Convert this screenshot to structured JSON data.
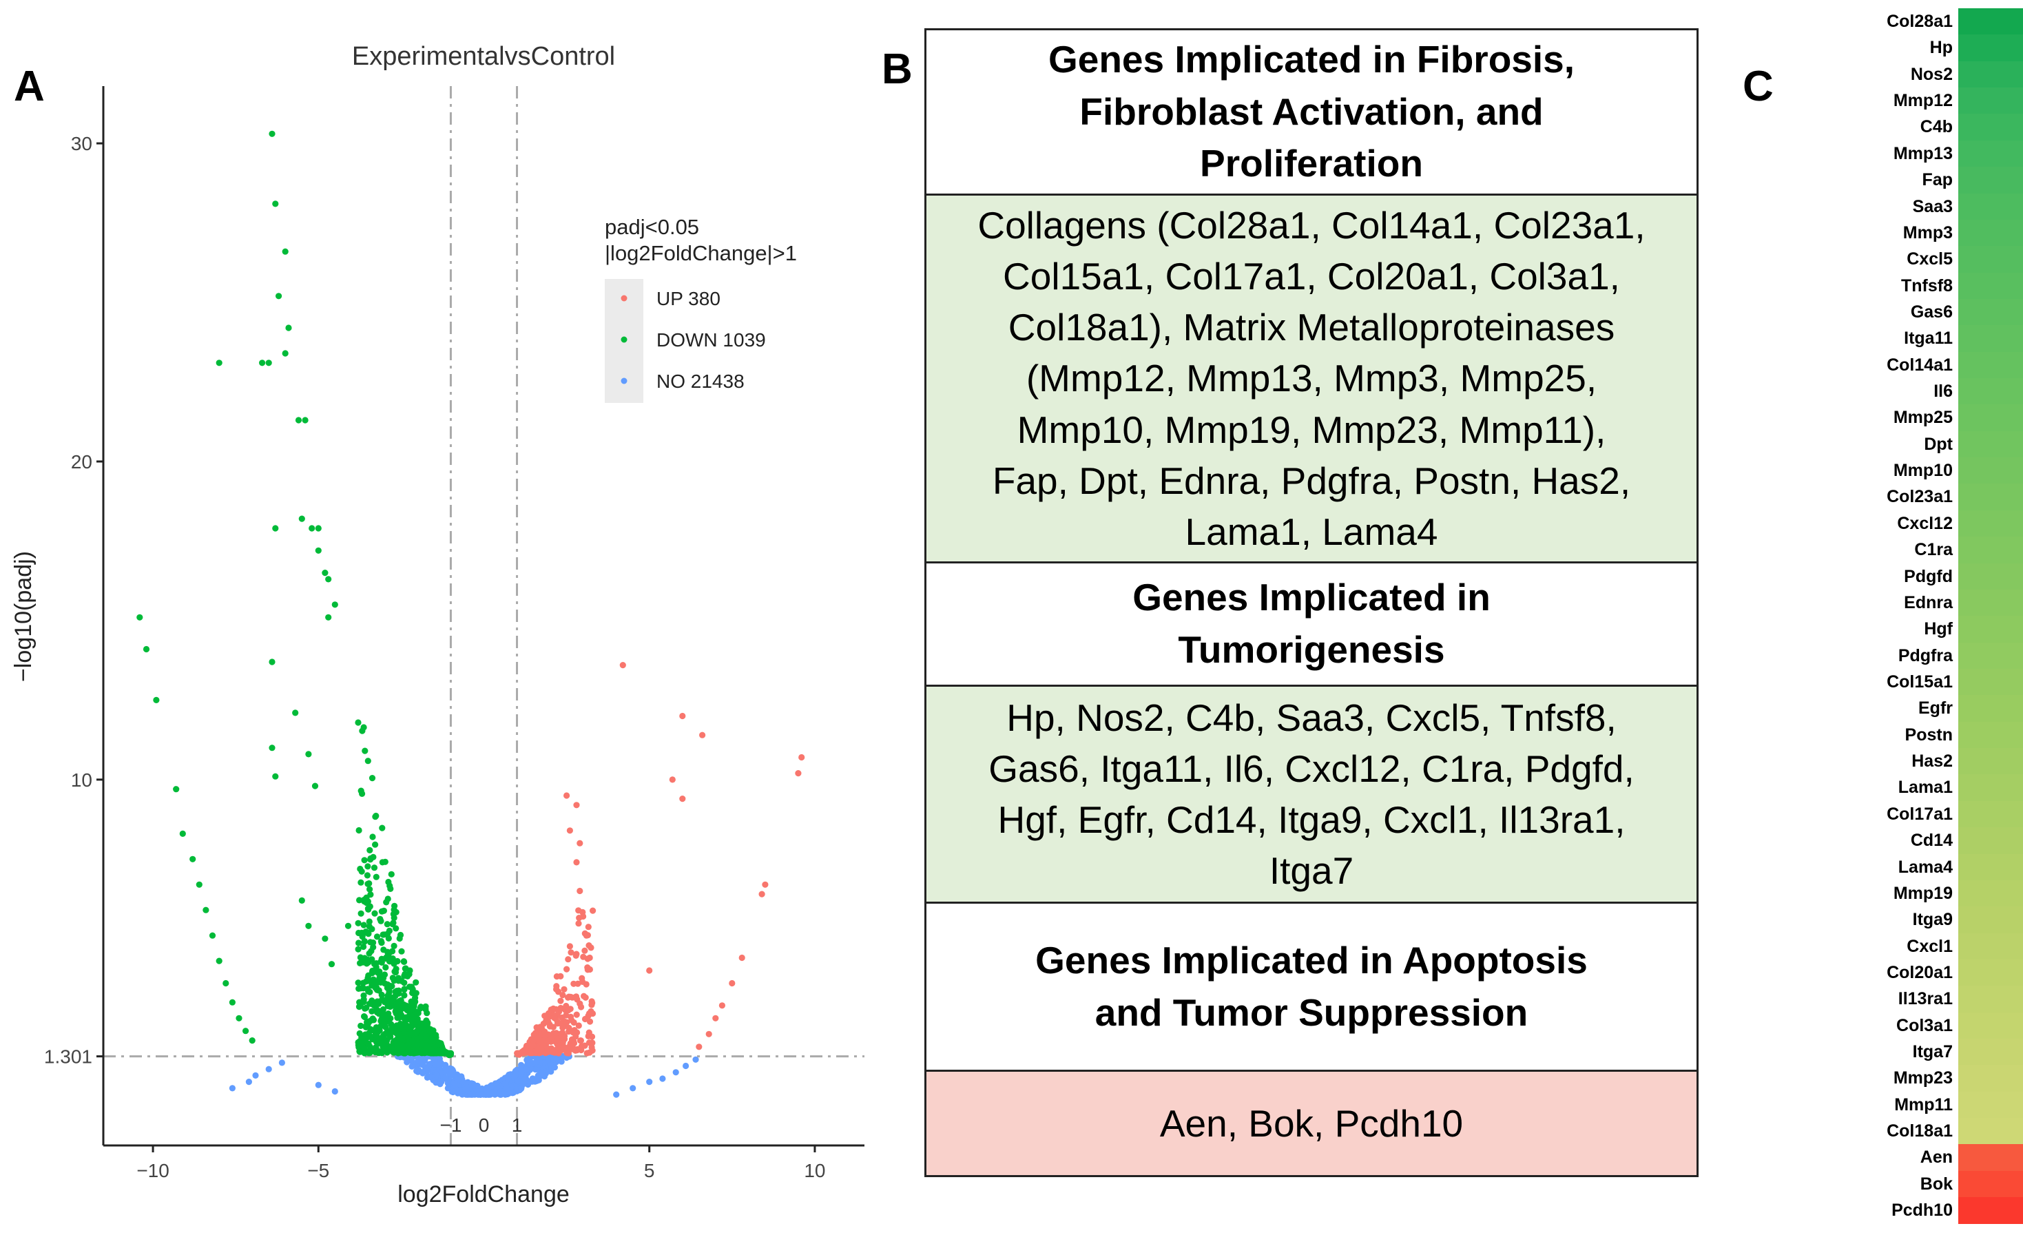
{
  "panels": {
    "a": "A",
    "b": "B",
    "c": "C"
  },
  "chart_data": [
    {
      "type": "scatter",
      "title": "ExperimentalvsControl",
      "xlabel": "log2FoldChange",
      "ylabel": "−log10(padj)",
      "xlim": [
        -11.5,
        11.5
      ],
      "ylim": [
        -1.5,
        31.8
      ],
      "x_ticks": [
        -10,
        -5,
        0,
        5,
        10
      ],
      "x_tick_labels": [
        "−10",
        "−5",
        "5",
        "10"
      ],
      "x_inner_ticks": [
        "−1",
        "0",
        "1"
      ],
      "y_ticks": [
        1.301,
        10,
        20,
        30
      ],
      "y_tick_labels": [
        "1.301",
        "10",
        "20",
        "30"
      ],
      "thresholds": {
        "x": [
          -1,
          1
        ],
        "y": 1.301
      },
      "legend": {
        "title_line1": "padj<0.05",
        "title_line2": "|log2FoldChange|>1",
        "position": "top-right",
        "entries": [
          {
            "label": "UP 380",
            "color": "#f8766d"
          },
          {
            "label": "DOWN 1039",
            "color": "#00ba38"
          },
          {
            "label": "NO 21438",
            "color": "#619cff"
          }
        ]
      },
      "series": [
        {
          "name": "UP",
          "count": 380,
          "color": "#f8766d",
          "points": [
            [
              9.6,
              10.7
            ],
            [
              9.5,
              10.2
            ],
            [
              4.2,
              13.6
            ],
            [
              6.0,
              12.0
            ],
            [
              6.6,
              11.4
            ],
            [
              5.7,
              10.0
            ],
            [
              6.0,
              9.4
            ],
            [
              8.5,
              6.7
            ],
            [
              8.4,
              6.4
            ],
            [
              5.0,
              4.0
            ],
            [
              3.0,
              5.7
            ],
            [
              3.2,
              4.4
            ],
            [
              3.1,
              5.1
            ],
            [
              2.9,
              6.5
            ],
            [
              2.8,
              7.4
            ],
            [
              2.9,
              8.0
            ],
            [
              2.5,
              9.5
            ],
            [
              2.8,
              9.2
            ],
            [
              2.6,
              8.4
            ],
            [
              7.8,
              4.4
            ],
            [
              7.5,
              3.6
            ],
            [
              7.2,
              2.9
            ],
            [
              7.0,
              2.5
            ],
            [
              6.8,
              2.0
            ],
            [
              6.5,
              1.6
            ]
          ]
        },
        {
          "name": "DOWN",
          "count": 1039,
          "color": "#00ba38",
          "points": [
            [
              -6.4,
              30.3
            ],
            [
              -6.3,
              28.1
            ],
            [
              -6.0,
              26.6
            ],
            [
              -6.2,
              25.2
            ],
            [
              -5.9,
              24.2
            ],
            [
              -6.0,
              23.4
            ],
            [
              -6.5,
              23.1
            ],
            [
              -6.7,
              23.1
            ],
            [
              -8.0,
              23.1
            ],
            [
              -5.4,
              21.3
            ],
            [
              -5.6,
              21.3
            ],
            [
              -5.5,
              18.2
            ],
            [
              -5.2,
              17.9
            ],
            [
              -6.3,
              17.9
            ],
            [
              -5.0,
              17.9
            ],
            [
              -5.0,
              17.2
            ],
            [
              -4.8,
              16.5
            ],
            [
              -4.7,
              16.3
            ],
            [
              -4.5,
              15.5
            ],
            [
              -4.7,
              15.1
            ],
            [
              -10.4,
              15.1
            ],
            [
              -10.2,
              14.1
            ],
            [
              -9.9,
              12.5
            ],
            [
              -9.3,
              9.7
            ],
            [
              -6.4,
              13.7
            ],
            [
              -5.7,
              12.1
            ],
            [
              -6.4,
              11.0
            ],
            [
              -5.3,
              10.8
            ],
            [
              -6.3,
              10.1
            ],
            [
              -5.1,
              9.8
            ],
            [
              -9.1,
              8.3
            ],
            [
              -8.8,
              7.5
            ],
            [
              -8.6,
              6.7
            ],
            [
              -8.4,
              5.9
            ],
            [
              -8.2,
              5.1
            ],
            [
              -8.0,
              4.3
            ],
            [
              -7.8,
              3.6
            ],
            [
              -7.6,
              3.0
            ],
            [
              -7.4,
              2.5
            ],
            [
              -7.2,
              2.1
            ],
            [
              -7.0,
              1.8
            ],
            [
              -5.5,
              6.2
            ],
            [
              -5.3,
              5.4
            ],
            [
              -4.8,
              5.0
            ],
            [
              -4.6,
              4.2
            ],
            [
              -4.1,
              5.4
            ]
          ]
        },
        {
          "name": "NO",
          "count": 21438,
          "color": "#619cff",
          "points": [
            [
              -7.6,
              0.3
            ],
            [
              -7.1,
              0.5
            ],
            [
              -6.9,
              0.7
            ],
            [
              -6.5,
              0.9
            ],
            [
              -6.1,
              1.1
            ],
            [
              -5.0,
              0.4
            ],
            [
              -4.5,
              0.2
            ],
            [
              4.0,
              0.1
            ],
            [
              4.5,
              0.3
            ],
            [
              5.0,
              0.5
            ],
            [
              5.4,
              0.6
            ],
            [
              5.8,
              0.8
            ],
            [
              6.1,
              1.0
            ],
            [
              6.4,
              1.2
            ]
          ]
        }
      ]
    },
    {
      "type": "heatmap",
      "genes": [
        "Col28a1",
        "Hp",
        "Nos2",
        "Mmp12",
        "C4b",
        "Mmp13",
        "Fap",
        "Saa3",
        "Mmp3",
        "Cxcl5",
        "Tnfsf8",
        "Gas6",
        "Itga11",
        "Col14a1",
        "Il6",
        "Mmp25",
        "Dpt",
        "Mmp10",
        "Col23a1",
        "Cxcl12",
        "C1ra",
        "Pdgfd",
        "Ednra",
        "Hgf",
        "Pdgfra",
        "Col15a1",
        "Egfr",
        "Postn",
        "Has2",
        "Lama1",
        "Col17a1",
        "Cd14",
        "Lama4",
        "Mmp19",
        "Itga9",
        "Cxcl1",
        "Col20a1",
        "Il13ra1",
        "Col3a1",
        "Itga7",
        "Mmp23",
        "Mmp11",
        "Col18a1",
        "Aen",
        "Bok",
        "Pcdh10"
      ],
      "colors": [
        "#13a84f",
        "#1ead55",
        "#2ab15a",
        "#34b45d",
        "#3bb75e",
        "#42b95f",
        "#48ba5f",
        "#4dbc5f",
        "#51bd5f",
        "#55be5f",
        "#59bf5f",
        "#5dc05f",
        "#61c15f",
        "#65c25f",
        "#69c35f",
        "#6dc45f",
        "#71c55f",
        "#75c55f",
        "#79c65f",
        "#7dc75f",
        "#81c85f",
        "#85c85f",
        "#89c95f",
        "#8dca5f",
        "#91cb60",
        "#95cb60",
        "#99cc60",
        "#9dcd61",
        "#a1cd62",
        "#a5ce63",
        "#a9cf64",
        "#adcf65",
        "#b1d066",
        "#b5d167",
        "#b8d168",
        "#bbd26a",
        "#bed36b",
        "#c1d46d",
        "#c4d56e",
        "#c7d570",
        "#cad672",
        "#ccd774",
        "#ced875",
        "#f7593e",
        "#fa4a35",
        "#fb382d"
      ]
    }
  ],
  "table": {
    "sections": [
      {
        "heading": [
          "Genes Implicated in Fibrosis,",
          "Fibroblast Activation, and",
          "Proliferation"
        ],
        "genes": [
          "Collagens (Col28a1, Col14a1, Col23a1,",
          "Col15a1, Col17a1, Col20a1, Col3a1,",
          "Col18a1), Matrix Metalloproteinases",
          "(Mmp12, Mmp13, Mmp3, Mmp25,",
          "Mmp10, Mmp19, Mmp23, Mmp11),",
          "Fap, Dpt, Ednra, Pdgfra, Postn, Has2,",
          "Lama1, Lama4"
        ]
      },
      {
        "heading": [
          "Genes Implicated in",
          "Tumorigenesis"
        ],
        "genes": [
          "Hp, Nos2, C4b, Saa3, Cxcl5, Tnfsf8,",
          "Gas6, Itga11, Il6, Cxcl12, C1ra, Pdgfd,",
          "Hgf, Egfr, Cd14, Itga9, Cxcl1, Il13ra1,",
          "Itga7"
        ]
      },
      {
        "heading": [
          "Genes Implicated in Apoptosis",
          "and Tumor Suppression"
        ],
        "genes": [
          "Aen, Bok, Pcdh10"
        ]
      }
    ]
  }
}
